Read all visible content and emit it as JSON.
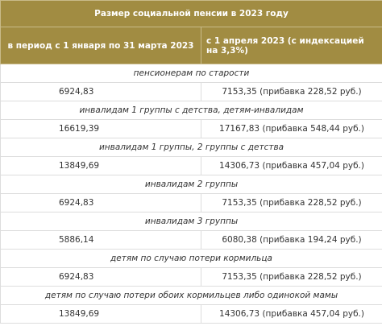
{
  "header": {
    "title": "Размер социальной пенсии в 2023 году",
    "col1": "в период с 1 января по 31 марта 2023",
    "col2": "с 1 апреля 2023 (с индексацией на 3,3%)"
  },
  "groups": [
    {
      "label": "пенсионерам по старости",
      "before": "6924,83",
      "after": "7153,35 (прибавка 228,52 руб.)"
    },
    {
      "label": "инвалидам 1 группы с детства, детям-инвалидам",
      "before": "16619,39",
      "after": "17167,83 (прибавка 548,44 руб.)"
    },
    {
      "label": "инвалидам 1 группы, 2 группы с детства",
      "before": "13849,69",
      "after": "14306,73 (прибавка 457,04 руб.)"
    },
    {
      "label": "инвалидам 2 группы",
      "before": "6924,83",
      "after": "7153,35 (прибавка 228,52 руб.)"
    },
    {
      "label": "инвалидам 3 группы",
      "before": "5886,14",
      "after": "6080,38 (прибавка 194,24 руб.)"
    },
    {
      "label": "детям по случаю потери кормильца",
      "before": "6924,83",
      "after": "7153,35 (прибавка 228,52 руб.)"
    },
    {
      "label": "детям по случаю потери обоих кормильцев либо одинокой мамы",
      "before": "13849,69",
      "after": "14306,73 (прибавка 457,04 руб.)"
    }
  ]
}
